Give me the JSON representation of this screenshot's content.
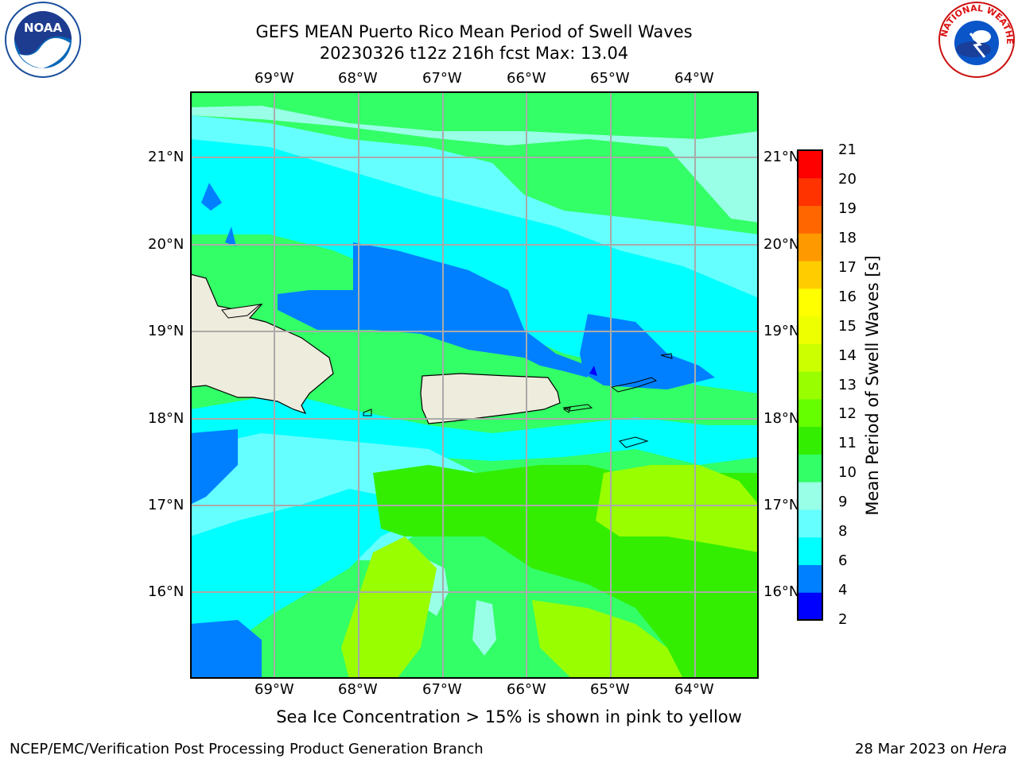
{
  "header": {
    "title_line1": "GEFS MEAN Puerto Rico Mean Period of Swell Waves",
    "title_line2": "20230326 t12z 216h fcst   Max: 13.04"
  },
  "logos": {
    "left": "NOAA",
    "right": "NATIONAL WEATHER SERVICE"
  },
  "map": {
    "lon_labels": [
      "69°W",
      "68°W",
      "67°W",
      "66°W",
      "65°W",
      "64°W"
    ],
    "lat_labels": [
      "21°N",
      "20°N",
      "19°N",
      "18°N",
      "17°N",
      "16°N"
    ],
    "extent": {
      "lon_min": -69.99,
      "lon_max": -63.25,
      "lat_min": 15.01,
      "lat_max": 21.75
    }
  },
  "colorbar": {
    "label": "Mean Period of Swell Waves [s]",
    "ticks": [
      "21",
      "20",
      "19",
      "18",
      "17",
      "16",
      "15",
      "14",
      "13",
      "12",
      "11",
      "10",
      "9",
      "8",
      "6",
      "4",
      "2"
    ],
    "colors_bottom_to_top": [
      "#0000ff",
      "#0080ff",
      "#00ffff",
      "#66ffff",
      "#99ffe6",
      "#33ff66",
      "#33ee00",
      "#66ff00",
      "#99ff00",
      "#ccff00",
      "#eeff00",
      "#ffff00",
      "#ffcc00",
      "#ff9900",
      "#ff6600",
      "#ff3300",
      "#ff0000"
    ]
  },
  "footer": {
    "note": "Sea Ice Concentration > 15% is shown in pink to yellow",
    "credit": "NCEP/EMC/Verification Post Processing Product Generation Branch",
    "date": "28 Mar 2023 on",
    "host": "Hera"
  }
}
